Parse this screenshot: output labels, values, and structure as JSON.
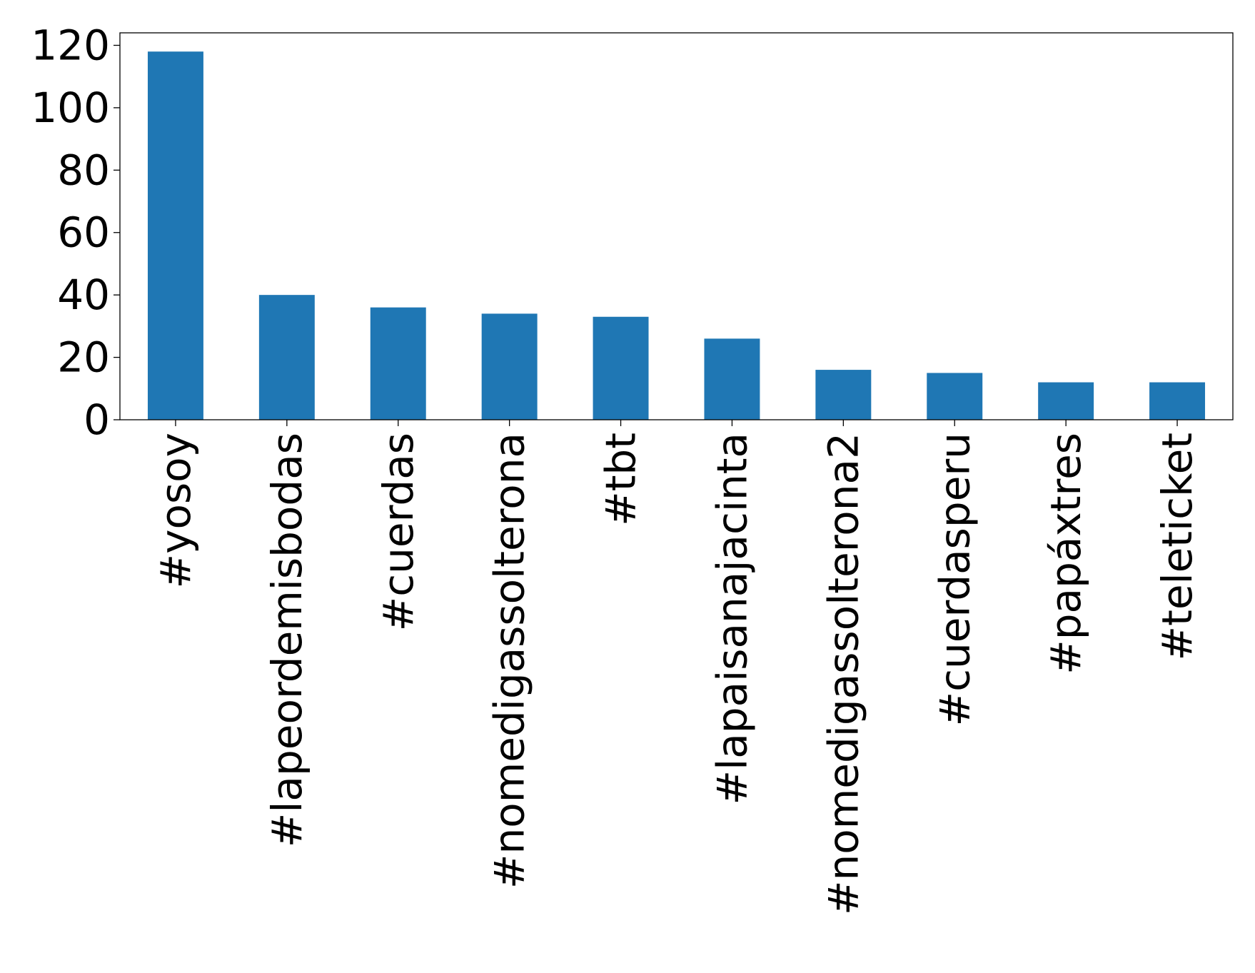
{
  "chart_data": {
    "type": "bar",
    "title": "",
    "xlabel": "",
    "ylabel": "",
    "categories": [
      "#yosoy",
      "#lapeordemisbodas",
      "#cuerdas",
      "#nomedigassolterona",
      "#tbt",
      "#lapaisanajacinta",
      "#nomedigassolterona2",
      "#cuerdasperu",
      "#papáxtres",
      "#teleticket"
    ],
    "values": [
      118,
      40,
      36,
      34,
      33,
      26,
      16,
      15,
      12,
      12
    ],
    "ylim": [
      0,
      124
    ],
    "yticks": [
      0,
      20,
      40,
      60,
      80,
      100,
      120
    ],
    "ytick_labels": [
      "0",
      "20",
      "40",
      "60",
      "80",
      "100",
      "120"
    ],
    "bar_color": "#1f77b4",
    "grid": false,
    "legend": "none"
  }
}
